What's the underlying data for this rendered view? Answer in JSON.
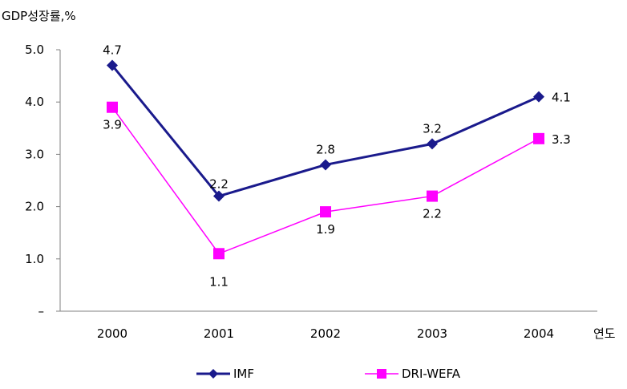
{
  "chart_data": {
    "type": "line",
    "ylabel": "GDP성장률,%",
    "xlabel": "연도",
    "categories": [
      "2000",
      "2001",
      "2002",
      "2003",
      "2004"
    ],
    "ylim": [
      0,
      5
    ],
    "yticks": [
      "–",
      "1.0",
      "2.0",
      "3.0",
      "4.0",
      "5.0"
    ],
    "grid": false,
    "legend_position": "bottom",
    "series": [
      {
        "name": "IMF",
        "values": [
          4.7,
          2.2,
          2.8,
          3.2,
          4.1
        ],
        "labels": [
          "4.7",
          "2.2",
          "2.8",
          "3.2",
          "4.1"
        ],
        "color": "#1a1a8c",
        "marker": "diamond"
      },
      {
        "name": "DRI-WEFA",
        "values": [
          3.9,
          1.1,
          1.9,
          2.2,
          3.3
        ],
        "labels": [
          "3.9",
          "1.1",
          "1.9",
          "2.2",
          "3.3"
        ],
        "color": "#ff00ff",
        "marker": "square"
      }
    ]
  }
}
